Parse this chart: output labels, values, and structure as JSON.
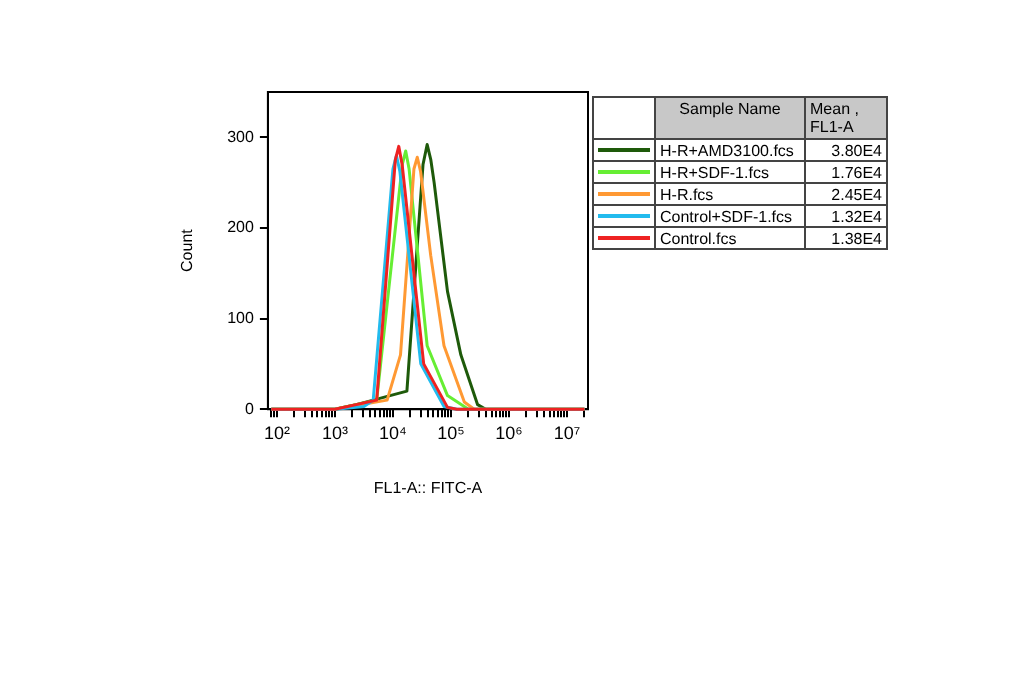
{
  "chart_data": {
    "type": "line",
    "xlabel": "FL1-A:: FITC-A",
    "ylabel": "Count",
    "log": "x",
    "xlim": [
      70,
      23000000
    ],
    "ylim": [
      0,
      350
    ],
    "xticks": [
      {
        "value": 80,
        "label": null
      },
      {
        "value": 90,
        "label": null
      },
      {
        "value": 100,
        "label": "10²"
      },
      {
        "value": 200,
        "label": null
      },
      {
        "value": 300,
        "label": null
      },
      {
        "value": 400,
        "label": null
      },
      {
        "value": 500,
        "label": null
      },
      {
        "value": 600,
        "label": null
      },
      {
        "value": 700,
        "label": null
      },
      {
        "value": 800,
        "label": null
      },
      {
        "value": 900,
        "label": null
      },
      {
        "value": 1000,
        "label": "10³"
      },
      {
        "value": 2000,
        "label": null
      },
      {
        "value": 3000,
        "label": null
      },
      {
        "value": 4000,
        "label": null
      },
      {
        "value": 5000,
        "label": null
      },
      {
        "value": 6000,
        "label": null
      },
      {
        "value": 7000,
        "label": null
      },
      {
        "value": 8000,
        "label": null
      },
      {
        "value": 9000,
        "label": null
      },
      {
        "value": 10000,
        "label": "10⁴"
      },
      {
        "value": 20000,
        "label": null
      },
      {
        "value": 30000,
        "label": null
      },
      {
        "value": 40000,
        "label": null
      },
      {
        "value": 50000,
        "label": null
      },
      {
        "value": 60000,
        "label": null
      },
      {
        "value": 70000,
        "label": null
      },
      {
        "value": 80000,
        "label": null
      },
      {
        "value": 90000,
        "label": null
      },
      {
        "value": 100000,
        "label": "10⁵"
      },
      {
        "value": 200000,
        "label": null
      },
      {
        "value": 300000,
        "label": null
      },
      {
        "value": 400000,
        "label": null
      },
      {
        "value": 500000,
        "label": null
      },
      {
        "value": 600000,
        "label": null
      },
      {
        "value": 700000,
        "label": null
      },
      {
        "value": 800000,
        "label": null
      },
      {
        "value": 900000,
        "label": null
      },
      {
        "value": 1000000,
        "label": "10⁶"
      },
      {
        "value": 2000000,
        "label": null
      },
      {
        "value": 3000000,
        "label": null
      },
      {
        "value": 4000000,
        "label": null
      },
      {
        "value": 5000000,
        "label": null
      },
      {
        "value": 6000000,
        "label": null
      },
      {
        "value": 7000000,
        "label": null
      },
      {
        "value": 8000000,
        "label": null
      },
      {
        "value": 9000000,
        "label": null
      },
      {
        "value": 10000000,
        "label": "10⁷"
      },
      {
        "value": 20000000,
        "label": null
      }
    ],
    "yticks": [
      0,
      100,
      200,
      300
    ],
    "grid": false,
    "marker": "none",
    "line_style": "solid",
    "legend": "right",
    "legend_title": "Sample Name",
    "annotations": [
      "Mean , FL1-A",
      "3.80E4",
      "1.76E4",
      "2.45E4",
      "1.32E4",
      "1.38E4"
    ],
    "series": [
      {
        "name": "H-R+AMD3100.fcs",
        "color": "#1e5a0a",
        "x": [
          80,
          1000,
          2340,
          17400,
          33000,
          38900,
          45000,
          51300,
          87100,
          148000,
          288000,
          398000,
          20000000
        ],
        "values": [
          0,
          0,
          5,
          20,
          270,
          292,
          275,
          250,
          130,
          60,
          5,
          0,
          0
        ]
      },
      {
        "name": "H-R+SDF-1.fcs",
        "color": "#66ee33",
        "x": [
          80,
          1000,
          5250,
          14500,
          16600,
          19000,
          38900,
          87100,
          200000,
          20000000
        ],
        "values": [
          0,
          0,
          10,
          270,
          285,
          265,
          70,
          15,
          0,
          0
        ]
      },
      {
        "name": "H-R.fcs",
        "color": "#ff9933",
        "x": [
          80,
          1000,
          7940,
          13500,
          23000,
          26300,
          30000,
          44700,
          75900,
          170000,
          251000,
          20000000
        ],
        "values": [
          0,
          0,
          10,
          60,
          265,
          278,
          262,
          170,
          70,
          8,
          0,
          0
        ]
      },
      {
        "name": "Control+SDF-1.fcs",
        "color": "#22bbee",
        "x": [
          80,
          1000,
          3160,
          4570,
          10000,
          11500,
          13200,
          30200,
          75900,
          126000,
          20000000
        ],
        "values": [
          0,
          0,
          3,
          10,
          265,
          280,
          262,
          50,
          3,
          0,
          0
        ]
      },
      {
        "name": "Control.fcs",
        "color": "#ee2222",
        "x": [
          80,
          1000,
          5250,
          11000,
          12600,
          14400,
          33900,
          87100,
          126000,
          20000000
        ],
        "values": [
          0,
          0,
          10,
          275,
          290,
          270,
          50,
          2,
          0,
          0
        ]
      }
    ]
  }
}
